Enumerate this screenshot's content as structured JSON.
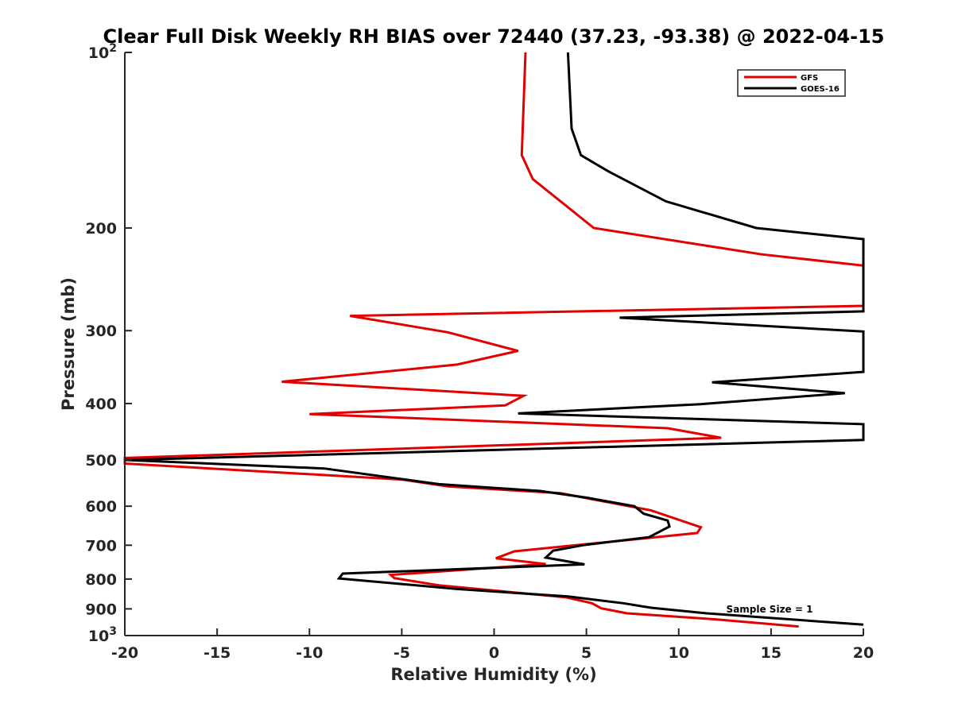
{
  "chart_data": {
    "type": "line",
    "title": "Clear Full Disk Weekly RH BIAS over 72440 (37.23, -93.38) @ 2022-04-15",
    "xlabel": "Relative Humidity (%)",
    "ylabel": "Pressure (mb)",
    "xlim": [
      -20,
      20
    ],
    "ylim": [
      100,
      1000
    ],
    "y_scale": "log",
    "y_reversed": true,
    "grid": false,
    "legend_position": "top-right",
    "x_ticks": [
      "-20",
      "-15",
      "-10",
      "-5",
      "0",
      "5",
      "10",
      "15",
      "20"
    ],
    "x_tick_values": [
      -20,
      -15,
      -10,
      -5,
      0,
      5,
      10,
      15,
      20
    ],
    "y_tick_values": [
      100,
      200,
      300,
      400,
      500,
      600,
      700,
      800,
      900,
      1000
    ],
    "y_ticks": [
      {
        "base": "10",
        "exp": "2"
      },
      {
        "base": "200",
        "exp": ""
      },
      {
        "base": "300",
        "exp": ""
      },
      {
        "base": "400",
        "exp": ""
      },
      {
        "base": "500",
        "exp": ""
      },
      {
        "base": "600",
        "exp": ""
      },
      {
        "base": "700",
        "exp": ""
      },
      {
        "base": "800",
        "exp": ""
      },
      {
        "base": "900",
        "exp": ""
      },
      {
        "base": "10",
        "exp": "3"
      }
    ],
    "series": [
      {
        "name": "GFS",
        "color": "#e30000",
        "x": [
          1.7,
          1.5,
          2.1,
          3.6,
          5.4,
          14.5,
          20,
          20,
          -7.8,
          -2.5,
          1.3,
          -2.0,
          -11.5,
          1.6,
          0.6,
          -10.0,
          9.4,
          12.3,
          -20,
          -20,
          -5,
          -2.5,
          3.6,
          8.5,
          11.2,
          11.0,
          8.0,
          1.1,
          0.1,
          2.8,
          -5.6,
          -5.4,
          -3.0,
          3.9,
          5.3,
          5.8,
          7.2,
          12.0,
          16.5
        ],
        "y": [
          100,
          150,
          165,
          180,
          200,
          222,
          232,
          272,
          283,
          302,
          325,
          343,
          367,
          388,
          403,
          417,
          441,
          458,
          496,
          507,
          540,
          555,
          570,
          610,
          652,
          667,
          682,
          717,
          737,
          754,
          787,
          797,
          820,
          860,
          880,
          898,
          916,
          938,
          965
        ]
      },
      {
        "name": "GOES-16",
        "color": "#000000",
        "x": [
          4.0,
          4.2,
          4.7,
          6.2,
          9.3,
          14.2,
          20,
          20,
          6.8,
          20,
          20,
          11.8,
          19.0,
          11.2,
          1.3,
          20,
          20,
          -20,
          -9.2,
          -3.0,
          2.5,
          5.0,
          7.6,
          8.1,
          9.4,
          9.5,
          8.4,
          4.8,
          3.2,
          2.8,
          4.9,
          -8.2,
          -8.4,
          -2.0,
          4.0,
          7.0,
          8.5,
          11.5,
          20
        ],
        "y": [
          100,
          135,
          150,
          160,
          180,
          200,
          209,
          278,
          285,
          301,
          353,
          368,
          384,
          401,
          416,
          434,
          462,
          500,
          517,
          550,
          565,
          580,
          600,
          618,
          635,
          650,
          678,
          700,
          715,
          735,
          755,
          783,
          798,
          832,
          857,
          880,
          896,
          916,
          958
        ]
      }
    ],
    "annotation": "Sample Size = 1"
  }
}
